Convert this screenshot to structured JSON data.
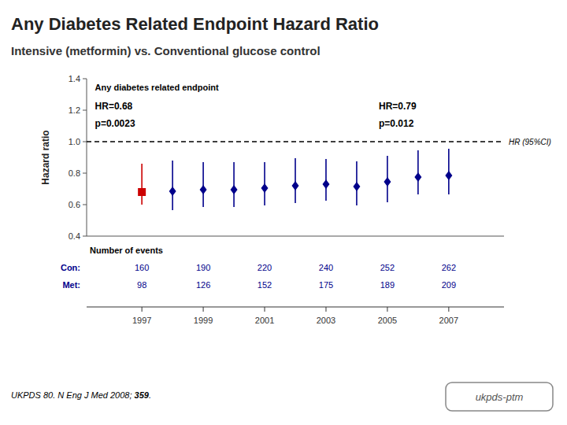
{
  "chart_data": {
    "type": "scatter",
    "title": "Any Diabetes Related Endpoint Hazard Ratio",
    "subtitle": "Intensive (metformin) vs. Conventional glucose control",
    "ylabel": "Hazard ratio",
    "xlim": [
      1995.2,
      2008.8
    ],
    "xticks": [
      1997,
      1999,
      2001,
      2003,
      2005,
      2007
    ],
    "ylim": [
      0.4,
      1.4
    ],
    "yticks": [
      0.4,
      0.6,
      0.8,
      {
        "value": 1.0,
        "label": "1.0"
      },
      1.2,
      1.4
    ],
    "grid": false,
    "series": [
      {
        "color": "#CC0000",
        "marker": "square",
        "x": [
          1997
        ],
        "values": [
          0.68
        ],
        "ci_lo": [
          0.6
        ],
        "ci_hi": [
          0.86
        ]
      },
      {
        "color": "#00008B",
        "marker": "diamond",
        "x": [
          1998,
          1999,
          2000,
          2001,
          2002,
          2003,
          2004,
          2005,
          2006,
          2007
        ],
        "values": [
          0.685,
          0.695,
          0.695,
          0.705,
          0.72,
          0.73,
          0.715,
          0.745,
          0.775,
          0.785
        ],
        "ci_lo": [
          0.565,
          0.585,
          0.585,
          0.595,
          0.61,
          0.625,
          0.595,
          0.615,
          0.665,
          0.665
        ],
        "ci_hi": [
          0.88,
          0.87,
          0.87,
          0.87,
          0.895,
          0.89,
          0.875,
          0.91,
          0.945,
          0.955
        ]
      }
    ],
    "reference_line": {
      "value": 1.0,
      "label": "HR (95%CI)",
      "line_style": "dashed"
    },
    "annotations_left": [
      "Any diabetes related endpoint",
      "HR=0.68",
      "p=0.0023"
    ],
    "annotations_right": [
      "HR=0.79",
      "p=0.012"
    ],
    "events_table": {
      "title": "Number of events",
      "rows": [
        {
          "label": "Con:",
          "color": "#00008B",
          "values": [
            160,
            190,
            220,
            240,
            252,
            262
          ]
        },
        {
          "label": "Met:",
          "color": "#00008B",
          "values": [
            98,
            126,
            152,
            175,
            189,
            209
          ]
        }
      ]
    },
    "footnote": {
      "prefix": "UKPDS 80. ",
      "journal": "N Eng J Med 2008; ",
      "volume": "359",
      "suffix": "."
    },
    "logo": "ukpds-ptm"
  }
}
